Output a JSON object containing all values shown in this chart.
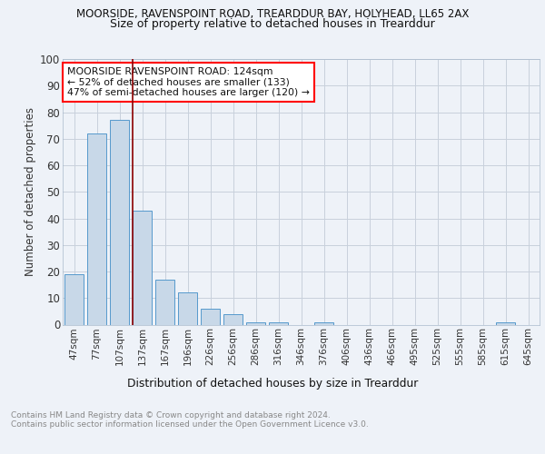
{
  "title1": "MOORSIDE, RAVENSPOINT ROAD, TREARDDUR BAY, HOLYHEAD, LL65 2AX",
  "title2": "Size of property relative to detached houses in Trearddur",
  "xlabel": "Distribution of detached houses by size in Trearddur",
  "ylabel": "Number of detached properties",
  "footer": "Contains HM Land Registry data © Crown copyright and database right 2024.\nContains public sector information licensed under the Open Government Licence v3.0.",
  "categories": [
    "47sqm",
    "77sqm",
    "107sqm",
    "137sqm",
    "167sqm",
    "196sqm",
    "226sqm",
    "256sqm",
    "286sqm",
    "316sqm",
    "346sqm",
    "376sqm",
    "406sqm",
    "436sqm",
    "466sqm",
    "495sqm",
    "525sqm",
    "555sqm",
    "585sqm",
    "615sqm",
    "645sqm"
  ],
  "values": [
    19,
    72,
    77,
    43,
    17,
    12,
    6,
    4,
    1,
    1,
    0,
    1,
    0,
    0,
    0,
    0,
    0,
    0,
    0,
    1,
    0
  ],
  "bar_color": "#c8d8e8",
  "bar_edge_color": "#5599cc",
  "grid_color": "#c8d0dc",
  "background_color": "#eef2f8",
  "annotation_box_text": "MOORSIDE RAVENSPOINT ROAD: 124sqm\n← 52% of detached houses are smaller (133)\n47% of semi-detached houses are larger (120) →",
  "annotation_box_color": "white",
  "annotation_box_edge": "red",
  "red_line_color": "#8b0000",
  "ylim": [
    0,
    100
  ],
  "yticks": [
    0,
    10,
    20,
    30,
    40,
    50,
    60,
    70,
    80,
    90,
    100
  ]
}
